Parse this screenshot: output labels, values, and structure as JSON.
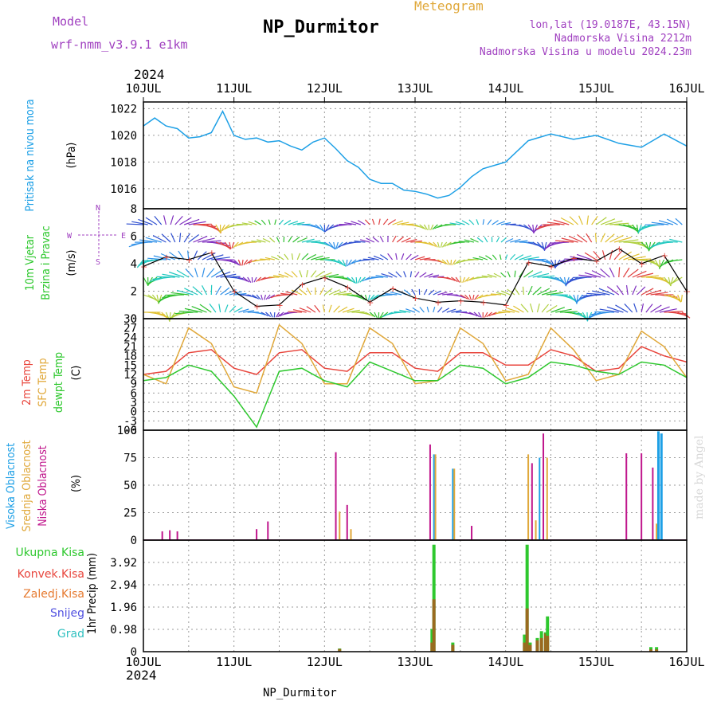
{
  "header": {
    "model_label": "Model",
    "model_name": "wrf-nmm_v3.9.1  e1km",
    "subtitle": "Meteogram",
    "station": "NP_Durmitor",
    "lonlat": "lon,lat (19.0187E, 43.15N)",
    "altitude": "Nadmorska Visina 2212m",
    "model_altitude": "Nadmorska Visina u modelu 2024.23m",
    "year_top": "2024",
    "year_bottom": "2024",
    "footer_station": "NP_Durmitor",
    "credit": "made by Angel"
  },
  "colors": {
    "pressure": "#1ea0e6",
    "t2m": "#e8453c",
    "sfc": "#e0a83a",
    "dewpt": "#2ec82e",
    "high_cloud": "#1ea0e6",
    "mid_cloud": "#e0a83a",
    "low_cloud": "#c0168c",
    "total_precip": "#2ec82e",
    "conv_precip": "#e8453c",
    "frozen_precip": "#e67a30",
    "snow": "#5050e0",
    "graupel": "#30c0c0",
    "purple_text": "#a040c0",
    "wind_speed_line": "#000000"
  },
  "chart_data": [
    {
      "type": "line",
      "id": "pressure",
      "ylabel": "Pritisak na nivou mora",
      "unit": "(hPa)",
      "ylim": [
        1014.5,
        1022.5
      ],
      "yticks": [
        "1022",
        "1020",
        "1018",
        "1016"
      ],
      "ytick_values": [
        1022,
        1020,
        1018,
        1016
      ],
      "x_hours": [
        0,
        3,
        6,
        9,
        12,
        15,
        18,
        21,
        24,
        27,
        30,
        33,
        36,
        39,
        42,
        45,
        48,
        51,
        54,
        57,
        60,
        63,
        66,
        69,
        72,
        75,
        78,
        81,
        84,
        87,
        90,
        96,
        102,
        108,
        114,
        120,
        126,
        132,
        138,
        144
      ],
      "values": [
        1020.7,
        1021.3,
        1020.7,
        1020.5,
        1019.8,
        1019.9,
        1020.2,
        1021.8,
        1020.0,
        1019.7,
        1019.8,
        1019.5,
        1019.6,
        1019.2,
        1018.9,
        1019.5,
        1019.8,
        1019.0,
        1018.1,
        1017.6,
        1016.7,
        1016.4,
        1016.4,
        1015.9,
        1015.8,
        1015.6,
        1015.3,
        1015.5,
        1016.1,
        1016.9,
        1017.5,
        1018.0,
        1019.6,
        1020.1,
        1019.7,
        1020.0,
        1019.4,
        1019.1,
        1020.1,
        1019.2
      ]
    },
    {
      "type": "wind",
      "id": "wind",
      "ylabel": "10m Vjetar Brzina i Pravac",
      "ylabel_line1": "10m Vjetar",
      "ylabel_line2": "Brzina i Pravac",
      "unit": "(m/s)",
      "ylim": [
        0,
        8
      ],
      "yticks": [
        "8",
        "6",
        "4",
        "2",
        "0"
      ],
      "ytick_values": [
        8,
        6,
        4,
        2,
        0
      ],
      "compass": [
        "W",
        "E",
        "N",
        "S"
      ],
      "x_hours": [
        0,
        6,
        12,
        18,
        24,
        30,
        36,
        42,
        48,
        54,
        60,
        66,
        72,
        78,
        84,
        90,
        96,
        102,
        108,
        114,
        120,
        126,
        132,
        138,
        144
      ],
      "speed": [
        3.8,
        4.5,
        4.3,
        4.8,
        2.0,
        0.9,
        1.0,
        2.5,
        3.0,
        2.3,
        1.2,
        2.2,
        1.5,
        1.2,
        1.3,
        1.2,
        1.0,
        4.1,
        3.8,
        4.4,
        4.2,
        5.1,
        4.0,
        4.6,
        2.0
      ]
    },
    {
      "type": "line",
      "id": "temperature",
      "ylabel_series": [
        "2m Temp",
        "SFC Temp",
        "dewpt Temp"
      ],
      "unit": "(C)",
      "ylim": [
        -6,
        30
      ],
      "yticks": [
        "30",
        "27",
        "24",
        "21",
        "18",
        "15",
        "12",
        "9",
        "6",
        "3",
        "0",
        "-3",
        "-6"
      ],
      "ytick_values": [
        30,
        27,
        24,
        21,
        18,
        15,
        12,
        9,
        6,
        3,
        0,
        -3,
        -6
      ],
      "x_hours": [
        0,
        6,
        12,
        18,
        24,
        30,
        36,
        42,
        48,
        54,
        60,
        66,
        72,
        78,
        84,
        90,
        96,
        102,
        108,
        114,
        120,
        126,
        132,
        138,
        144
      ],
      "series": [
        {
          "name": "2m Temp",
          "values": [
            12,
            13,
            19,
            20,
            14,
            12,
            19,
            20,
            14,
            13,
            19,
            19,
            14,
            13,
            19,
            19,
            15,
            15,
            20,
            18,
            13,
            14,
            21,
            18,
            16
          ]
        },
        {
          "name": "SFC Temp",
          "values": [
            12,
            9,
            27,
            22,
            8,
            6,
            28,
            22,
            9,
            9,
            27,
            22,
            9,
            10,
            27,
            22,
            10,
            12,
            27,
            20,
            10,
            12,
            26,
            21,
            11
          ]
        },
        {
          "name": "dewpt Temp",
          "values": [
            10,
            11,
            15,
            13,
            5,
            -5,
            13,
            14,
            10,
            8,
            16,
            13,
            10,
            10,
            15,
            14,
            9,
            11,
            16,
            15,
            13,
            12,
            16,
            15,
            11
          ]
        }
      ]
    },
    {
      "type": "bar",
      "id": "clouds",
      "ylabel_series": [
        "Visoka Oblacnost",
        "Srednja Oblacnost",
        "Niska Oblacnost"
      ],
      "unit": "(%)",
      "ylim": [
        0,
        100
      ],
      "yticks": [
        "100",
        "75",
        "50",
        "25",
        "0"
      ],
      "ytick_values": [
        100,
        75,
        50,
        25,
        0
      ],
      "bars": [
        {
          "h": 5,
          "series": "Niska Oblacnost",
          "v": 8
        },
        {
          "h": 7,
          "series": "Niska Oblacnost",
          "v": 9
        },
        {
          "h": 9,
          "series": "Niska Oblacnost",
          "v": 8
        },
        {
          "h": 30,
          "series": "Niska Oblacnost",
          "v": 10
        },
        {
          "h": 33,
          "series": "Niska Oblacnost",
          "v": 17
        },
        {
          "h": 51,
          "series": "Niska Oblacnost",
          "v": 80
        },
        {
          "h": 52,
          "series": "Srednja Oblacnost",
          "v": 26
        },
        {
          "h": 54,
          "series": "Niska Oblacnost",
          "v": 32
        },
        {
          "h": 55,
          "series": "Srednja Oblacnost",
          "v": 10
        },
        {
          "h": 76,
          "series": "Niska Oblacnost",
          "v": 87
        },
        {
          "h": 77,
          "series": "Visoka Oblacnost",
          "v": 78
        },
        {
          "h": 77.4,
          "series": "Srednja Oblacnost",
          "v": 78
        },
        {
          "h": 82,
          "series": "Visoka Oblacnost",
          "v": 65
        },
        {
          "h": 82.4,
          "series": "Srednja Oblacnost",
          "v": 65
        },
        {
          "h": 87,
          "series": "Niska Oblacnost",
          "v": 13
        },
        {
          "h": 102,
          "series": "Srednja Oblacnost",
          "v": 78
        },
        {
          "h": 103,
          "series": "Niska Oblacnost",
          "v": 70
        },
        {
          "h": 104,
          "series": "Srednja Oblacnost",
          "v": 18
        },
        {
          "h": 105,
          "series": "Visoka Oblacnost",
          "v": 75
        },
        {
          "h": 106,
          "series": "Niska Oblacnost",
          "v": 97
        },
        {
          "h": 107,
          "series": "Srednja Oblacnost",
          "v": 75
        },
        {
          "h": 128,
          "series": "Niska Oblacnost",
          "v": 79
        },
        {
          "h": 132,
          "series": "Niska Oblacnost",
          "v": 79
        },
        {
          "h": 135,
          "series": "Niska Oblacnost",
          "v": 66
        },
        {
          "h": 136,
          "series": "Srednja Oblacnost",
          "v": 15
        },
        {
          "h": 136.5,
          "series": "Visoka Oblacnost",
          "v": 99
        },
        {
          "h": 137.3,
          "series": "Visoka Oblacnost",
          "v": 97
        }
      ]
    },
    {
      "type": "bar",
      "id": "precip",
      "legend": [
        "Ukupna Kisa",
        "Konvek.Kisa",
        "Zaledj.Kisa",
        "Snijeg",
        "Grad"
      ],
      "ylabel": "1hr Precip",
      "unit": "(mm)",
      "ylim": [
        0,
        4.9
      ],
      "yticks": [
        "3.92",
        "2.94",
        "1.96",
        "0.98",
        "0"
      ],
      "ytick_values": [
        3.92,
        2.94,
        1.96,
        0.98,
        0
      ],
      "bars": [
        {
          "h": 52,
          "total": 0.14,
          "conv": 0.12
        },
        {
          "h": 76.5,
          "total": 1.0,
          "conv": 0.4
        },
        {
          "h": 77,
          "total": 4.7,
          "conv": 2.3
        },
        {
          "h": 82,
          "total": 0.4,
          "conv": 0.3
        },
        {
          "h": 101,
          "total": 0.75,
          "conv": 0.4
        },
        {
          "h": 101.7,
          "total": 4.7,
          "conv": 1.9
        },
        {
          "h": 102.5,
          "total": 0.4,
          "conv": 0.3
        },
        {
          "h": 104.4,
          "total": 0.6,
          "conv": 0.5
        },
        {
          "h": 105.5,
          "total": 0.9,
          "conv": 0.6
        },
        {
          "h": 106.6,
          "total": 0.85,
          "conv": 0.8
        },
        {
          "h": 107.1,
          "total": 1.55,
          "conv": 0.7
        },
        {
          "h": 134.5,
          "total": 0.2,
          "conv": 0.1
        },
        {
          "h": 136,
          "total": 0.2,
          "conv": 0.1
        }
      ]
    }
  ],
  "x_axis": {
    "labels": [
      "10JUL",
      "11JUL",
      "12JUL",
      "13JUL",
      "14JUL",
      "15JUL",
      "16JUL"
    ],
    "label_hours": [
      0,
      24,
      48,
      72,
      96,
      120,
      144
    ],
    "total_hours": 144
  }
}
